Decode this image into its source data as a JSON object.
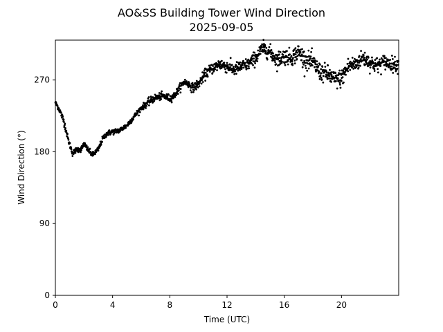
{
  "chart_data": {
    "type": "scatter",
    "title": "AO&SS Building Tower Wind Direction",
    "subtitle": "2025-09-05",
    "xlabel": "Time (UTC)",
    "ylabel": "Wind Direction (°)",
    "xlim": [
      0,
      24
    ],
    "ylim": [
      0,
      320
    ],
    "x_ticks": [
      0,
      4,
      8,
      12,
      16,
      20
    ],
    "x_tick_labels": [
      "0",
      "4",
      "8",
      "12",
      "16",
      "20"
    ],
    "y_ticks": [
      0,
      90,
      180,
      270
    ],
    "y_tick_labels": [
      "0",
      "90",
      "180",
      "270"
    ],
    "grid": false,
    "marker_color": "#000000",
    "series": [
      {
        "trend_x": [
          0,
          0.3,
          0.6,
          0.9,
          1.2,
          1.5,
          1.8,
          2.0,
          2.3,
          2.6,
          3.0,
          3.3,
          3.6,
          4.0,
          4.5,
          5.0,
          5.5,
          6.0,
          6.5,
          7.0,
          7.5,
          8.0,
          8.3,
          8.6,
          9.0,
          9.3,
          9.6,
          10.0,
          10.5,
          11.0,
          11.5,
          12.0,
          12.5,
          13.0,
          13.5,
          14.0,
          14.5,
          15.0,
          15.5,
          16.0,
          16.5,
          17.0,
          17.5,
          18.0,
          18.5,
          19.0,
          19.5,
          20.0,
          20.5,
          21.0,
          21.5,
          22.0,
          22.5,
          23.0,
          23.5,
          24.0
        ],
        "trend_y": [
          242,
          232,
          218,
          195,
          178,
          183,
          183,
          190,
          182,
          176,
          183,
          196,
          203,
          205,
          207,
          213,
          224,
          235,
          242,
          248,
          250,
          247,
          250,
          258,
          268,
          265,
          260,
          265,
          278,
          285,
          290,
          287,
          283,
          287,
          290,
          298,
          310,
          305,
          295,
          300,
          298,
          305,
          295,
          292,
          280,
          278,
          270,
          272,
          288,
          290,
          298,
          292,
          288,
          293,
          290,
          289
        ],
        "noise": [
          2,
          3,
          4,
          3,
          3,
          3,
          3,
          3,
          3,
          3,
          3,
          3,
          3,
          3,
          3,
          3,
          3,
          3,
          4,
          4,
          4,
          4,
          4,
          4,
          4,
          4,
          5,
          5,
          6,
          6,
          7,
          7,
          7,
          7,
          7,
          8,
          8,
          8,
          9,
          9,
          9,
          10,
          10,
          10,
          10,
          10,
          10,
          10,
          10,
          9,
          9,
          9,
          9,
          8,
          8,
          8
        ],
        "points_per_hour": 60
      }
    ]
  }
}
